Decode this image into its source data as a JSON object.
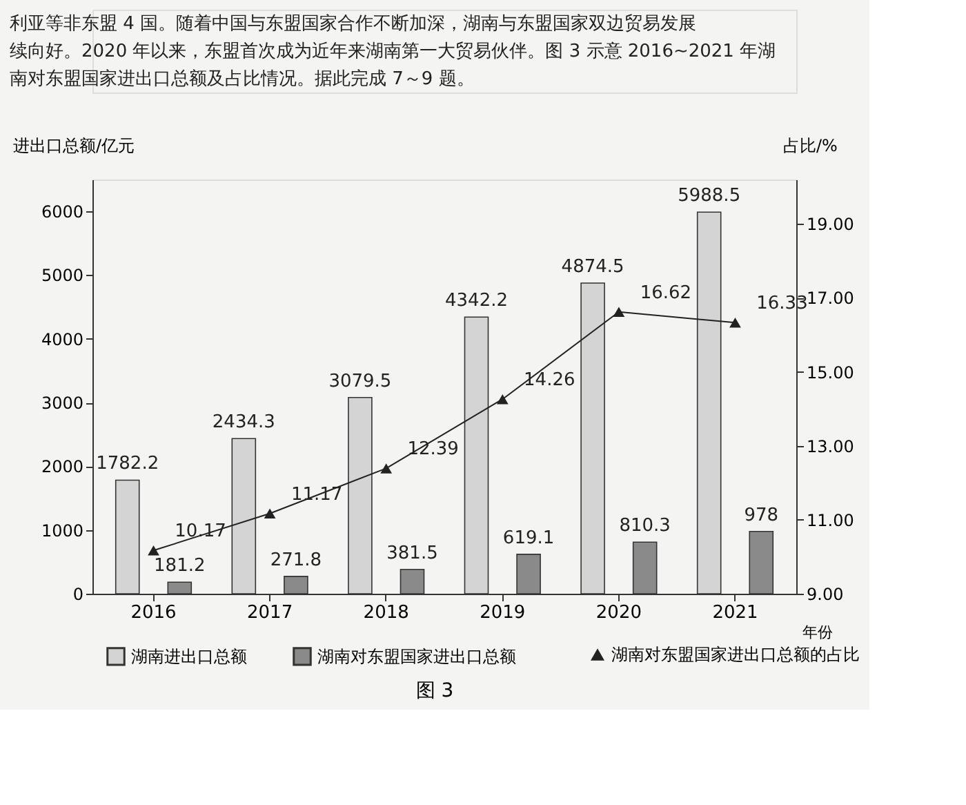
{
  "chart_data": {
    "type": "bar",
    "title": "图 3",
    "annotations": [
      "利亚等非东盟 4 国。随着中国与东盟国家合作不断加深，湖南与东盟国家双边贸易发展",
      "续向好。2020 年以来，东盟首次成为近年来湖南第一大贸易伙伴。图 3 示意 2016~2021 年湖",
      "南对东盟国家进出口总额及占比情况。据此完成 7～9 题。"
    ],
    "xlabel": "年份",
    "ylabel": "进出口总额/亿元",
    "y2label": "占比/%",
    "categories": [
      "2016",
      "2017",
      "2018",
      "2019",
      "2020",
      "2021"
    ],
    "series": [
      {
        "name": "湖南进出口总额",
        "color": "#d4d4d4",
        "values": [
          1782.2,
          2434.3,
          3079.5,
          4342.2,
          4874.5,
          5988.5
        ]
      },
      {
        "name": "湖南对东盟国家进出口总额",
        "color": "#8a8a8a",
        "values": [
          181.2,
          271.8,
          381.5,
          619.1,
          810.3,
          978
        ]
      },
      {
        "name": "湖南对东盟国家进出口总额的占比",
        "type": "line",
        "axis": "y2",
        "color": "#222222",
        "marker": "triangle",
        "values": [
          10.17,
          11.17,
          12.39,
          14.26,
          16.62,
          16.33
        ]
      }
    ],
    "ylim": [
      0,
      6500
    ],
    "yticks": [
      0,
      1000,
      2000,
      3000,
      4000,
      5000,
      6000
    ],
    "y2lim": [
      9,
      20.2
    ],
    "y2ticks": [
      {
        "value": 9,
        "label": "9.00"
      },
      {
        "value": 11,
        "label": "11.00"
      },
      {
        "value": 13,
        "label": "13.00"
      },
      {
        "value": 15,
        "label": "15.00"
      },
      {
        "value": 17,
        "label": "17.00"
      },
      {
        "value": 19,
        "label": "19.00"
      }
    ],
    "data_labels": true,
    "grid": false,
    "legend": "bottom"
  }
}
